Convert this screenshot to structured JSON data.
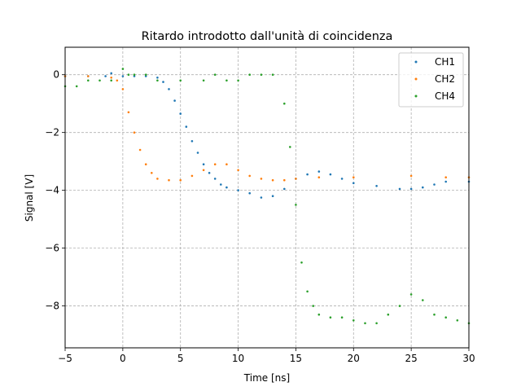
{
  "chart_data": {
    "type": "scatter",
    "title": "Ritardo introdotto dall'unità di coincidenza",
    "xlabel": "Time [ns]",
    "ylabel": "Signal [V]",
    "xlim": [
      -5,
      30
    ],
    "ylim": [
      -9.45,
      0.95
    ],
    "xticks": [
      -5,
      0,
      5,
      10,
      15,
      20,
      25,
      30
    ],
    "xtick_labels": [
      "−5",
      "0",
      "5",
      "10",
      "15",
      "20",
      "25",
      "30"
    ],
    "yticks": [
      0,
      -2,
      -4,
      -6,
      -8
    ],
    "ytick_labels": [
      "0",
      "−2",
      "−4",
      "−6",
      "−8"
    ],
    "grid": true,
    "legend_position": "top-right",
    "series": [
      {
        "name": "CH1",
        "color": "#1f77b4",
        "points": [
          [
            -5,
            -0.05
          ],
          [
            -3,
            -0.05
          ],
          [
            -1.5,
            -0.05
          ],
          [
            -1,
            0.05
          ],
          [
            0,
            -0.05
          ],
          [
            1,
            -0.05
          ],
          [
            2,
            -0.05
          ],
          [
            3,
            -0.1
          ],
          [
            3.5,
            -0.25
          ],
          [
            4,
            -0.5
          ],
          [
            4.5,
            -0.9
          ],
          [
            5,
            -1.35
          ],
          [
            5.5,
            -1.8
          ],
          [
            6,
            -2.3
          ],
          [
            6.5,
            -2.7
          ],
          [
            7,
            -3.1
          ],
          [
            7.5,
            -3.4
          ],
          [
            8,
            -3.6
          ],
          [
            8.5,
            -3.8
          ],
          [
            9,
            -3.9
          ],
          [
            10,
            -4.0
          ],
          [
            11,
            -4.1
          ],
          [
            12,
            -4.25
          ],
          [
            13,
            -4.2
          ],
          [
            14,
            -3.95
          ],
          [
            15,
            -3.6
          ],
          [
            16,
            -3.45
          ],
          [
            17,
            -3.35
          ],
          [
            18,
            -3.45
          ],
          [
            19,
            -3.6
          ],
          [
            20,
            -3.75
          ],
          [
            22,
            -3.85
          ],
          [
            24,
            -3.95
          ],
          [
            25,
            -3.95
          ],
          [
            26,
            -3.9
          ],
          [
            27,
            -3.8
          ],
          [
            28,
            -3.7
          ],
          [
            30,
            -3.7
          ]
        ]
      },
      {
        "name": "CH2",
        "color": "#ff7f0e",
        "points": [
          [
            -5,
            -0.05
          ],
          [
            -3,
            -0.05
          ],
          [
            -1,
            -0.1
          ],
          [
            -0.5,
            -0.2
          ],
          [
            0,
            -0.5
          ],
          [
            0.5,
            -1.3
          ],
          [
            1,
            -2.0
          ],
          [
            1.5,
            -2.6
          ],
          [
            2,
            -3.1
          ],
          [
            2.5,
            -3.4
          ],
          [
            3,
            -3.6
          ],
          [
            4,
            -3.65
          ],
          [
            5,
            -3.65
          ],
          [
            6,
            -3.5
          ],
          [
            7,
            -3.3
          ],
          [
            8,
            -3.1
          ],
          [
            9,
            -3.1
          ],
          [
            10,
            -3.3
          ],
          [
            11,
            -3.5
          ],
          [
            12,
            -3.6
          ],
          [
            13,
            -3.65
          ],
          [
            14,
            -3.65
          ],
          [
            15,
            -3.6
          ],
          [
            17,
            -3.55
          ],
          [
            20,
            -3.55
          ],
          [
            25,
            -3.5
          ],
          [
            28,
            -3.55
          ],
          [
            30,
            -3.55
          ]
        ]
      },
      {
        "name": "CH4",
        "color": "#2ca02c",
        "points": [
          [
            -5,
            -0.4
          ],
          [
            -4,
            -0.4
          ],
          [
            -3,
            -0.2
          ],
          [
            -2,
            -0.2
          ],
          [
            -1,
            -0.2
          ],
          [
            0,
            0.2
          ],
          [
            0.5,
            0
          ],
          [
            1,
            0
          ],
          [
            2,
            0
          ],
          [
            3,
            -0.2
          ],
          [
            5,
            -0.2
          ],
          [
            7,
            -0.2
          ],
          [
            8,
            0
          ],
          [
            9,
            -0.2
          ],
          [
            10,
            -0.2
          ],
          [
            11,
            0
          ],
          [
            12,
            0
          ],
          [
            13,
            0
          ],
          [
            14,
            -1
          ],
          [
            14.5,
            -2.5
          ],
          [
            15,
            -4.5
          ],
          [
            15.5,
            -6.5
          ],
          [
            16,
            -7.5
          ],
          [
            16.5,
            -8
          ],
          [
            17,
            -8.3
          ],
          [
            18,
            -8.4
          ],
          [
            19,
            -8.4
          ],
          [
            20,
            -8.5
          ],
          [
            21,
            -8.6
          ],
          [
            22,
            -8.6
          ],
          [
            23,
            -8.3
          ],
          [
            24,
            -8.0
          ],
          [
            25,
            -7.6
          ],
          [
            26,
            -7.8
          ],
          [
            27,
            -8.3
          ],
          [
            28,
            -8.4
          ],
          [
            29,
            -8.5
          ],
          [
            30,
            -8.6
          ]
        ]
      }
    ]
  }
}
